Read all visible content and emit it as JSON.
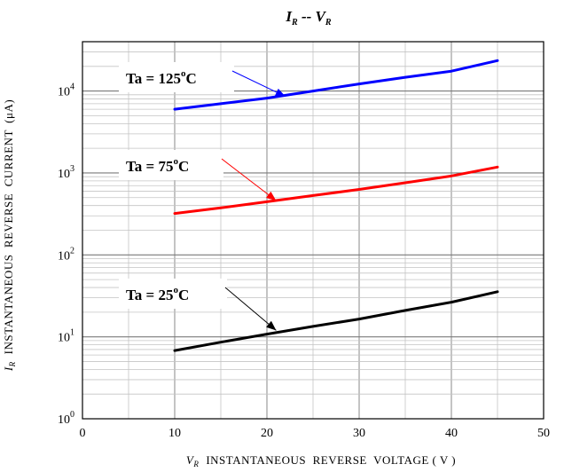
{
  "chart_data": {
    "type": "line",
    "title": {
      "main": "I",
      "main_sub": "R",
      "sep": " -- ",
      "second": "V",
      "second_sub": "R"
    },
    "xlabel": {
      "symbol": "V",
      "sub": "R",
      "text": "INSTANTANEOUS  REVERSE  VOLTAGE ( V )"
    },
    "ylabel": {
      "symbol": "I",
      "sub": "R",
      "text": "INSTANTANEOUS  REVERSE  CURRENT  (μA)"
    },
    "xlim": [
      0,
      50
    ],
    "ylim": [
      1,
      40000
    ],
    "yscale": "log",
    "grid": true,
    "x_ticks": [
      "0",
      "10",
      "20",
      "30",
      "40",
      "50"
    ],
    "y_ticks": [
      {
        "value": 1,
        "base": "10",
        "exp": "0"
      },
      {
        "value": 10,
        "base": "10",
        "exp": "1"
      },
      {
        "value": 100,
        "base": "10",
        "exp": "2"
      },
      {
        "value": 1000,
        "base": "10",
        "exp": "3"
      },
      {
        "value": 10000,
        "base": "10",
        "exp": "4"
      }
    ],
    "series": [
      {
        "name": "Ta = 125°C",
        "label_main": "Ta = 125",
        "label_deg": "o",
        "label_unit": "C",
        "color": "#0000ff",
        "x": [
          10,
          15,
          20,
          25,
          30,
          35,
          40,
          45
        ],
        "y": [
          6000,
          7000,
          8200,
          10000,
          12200,
          14700,
          17500,
          23500
        ],
        "arrow_target": {
          "x": 22,
          "y": 8600
        }
      },
      {
        "name": "Ta = 75°C",
        "label_main": "Ta = 75",
        "label_deg": "o",
        "label_unit": "C",
        "color": "#ff0000",
        "x": [
          10,
          15,
          20,
          25,
          30,
          35,
          40,
          45
        ],
        "y": [
          320,
          375,
          445,
          530,
          630,
          760,
          920,
          1180
        ],
        "arrow_target": {
          "x": 21,
          "y": 460
        }
      },
      {
        "name": "Ta = 25°C",
        "label_main": "Ta = 25",
        "label_deg": "o",
        "label_unit": "C",
        "color": "#000000",
        "x": [
          10,
          15,
          20,
          25,
          30,
          35,
          40,
          45
        ],
        "y": [
          6.8,
          8.6,
          10.8,
          13.4,
          16.5,
          21,
          26.5,
          35.5
        ],
        "arrow_target": {
          "x": 21,
          "y": 12
        }
      }
    ]
  }
}
